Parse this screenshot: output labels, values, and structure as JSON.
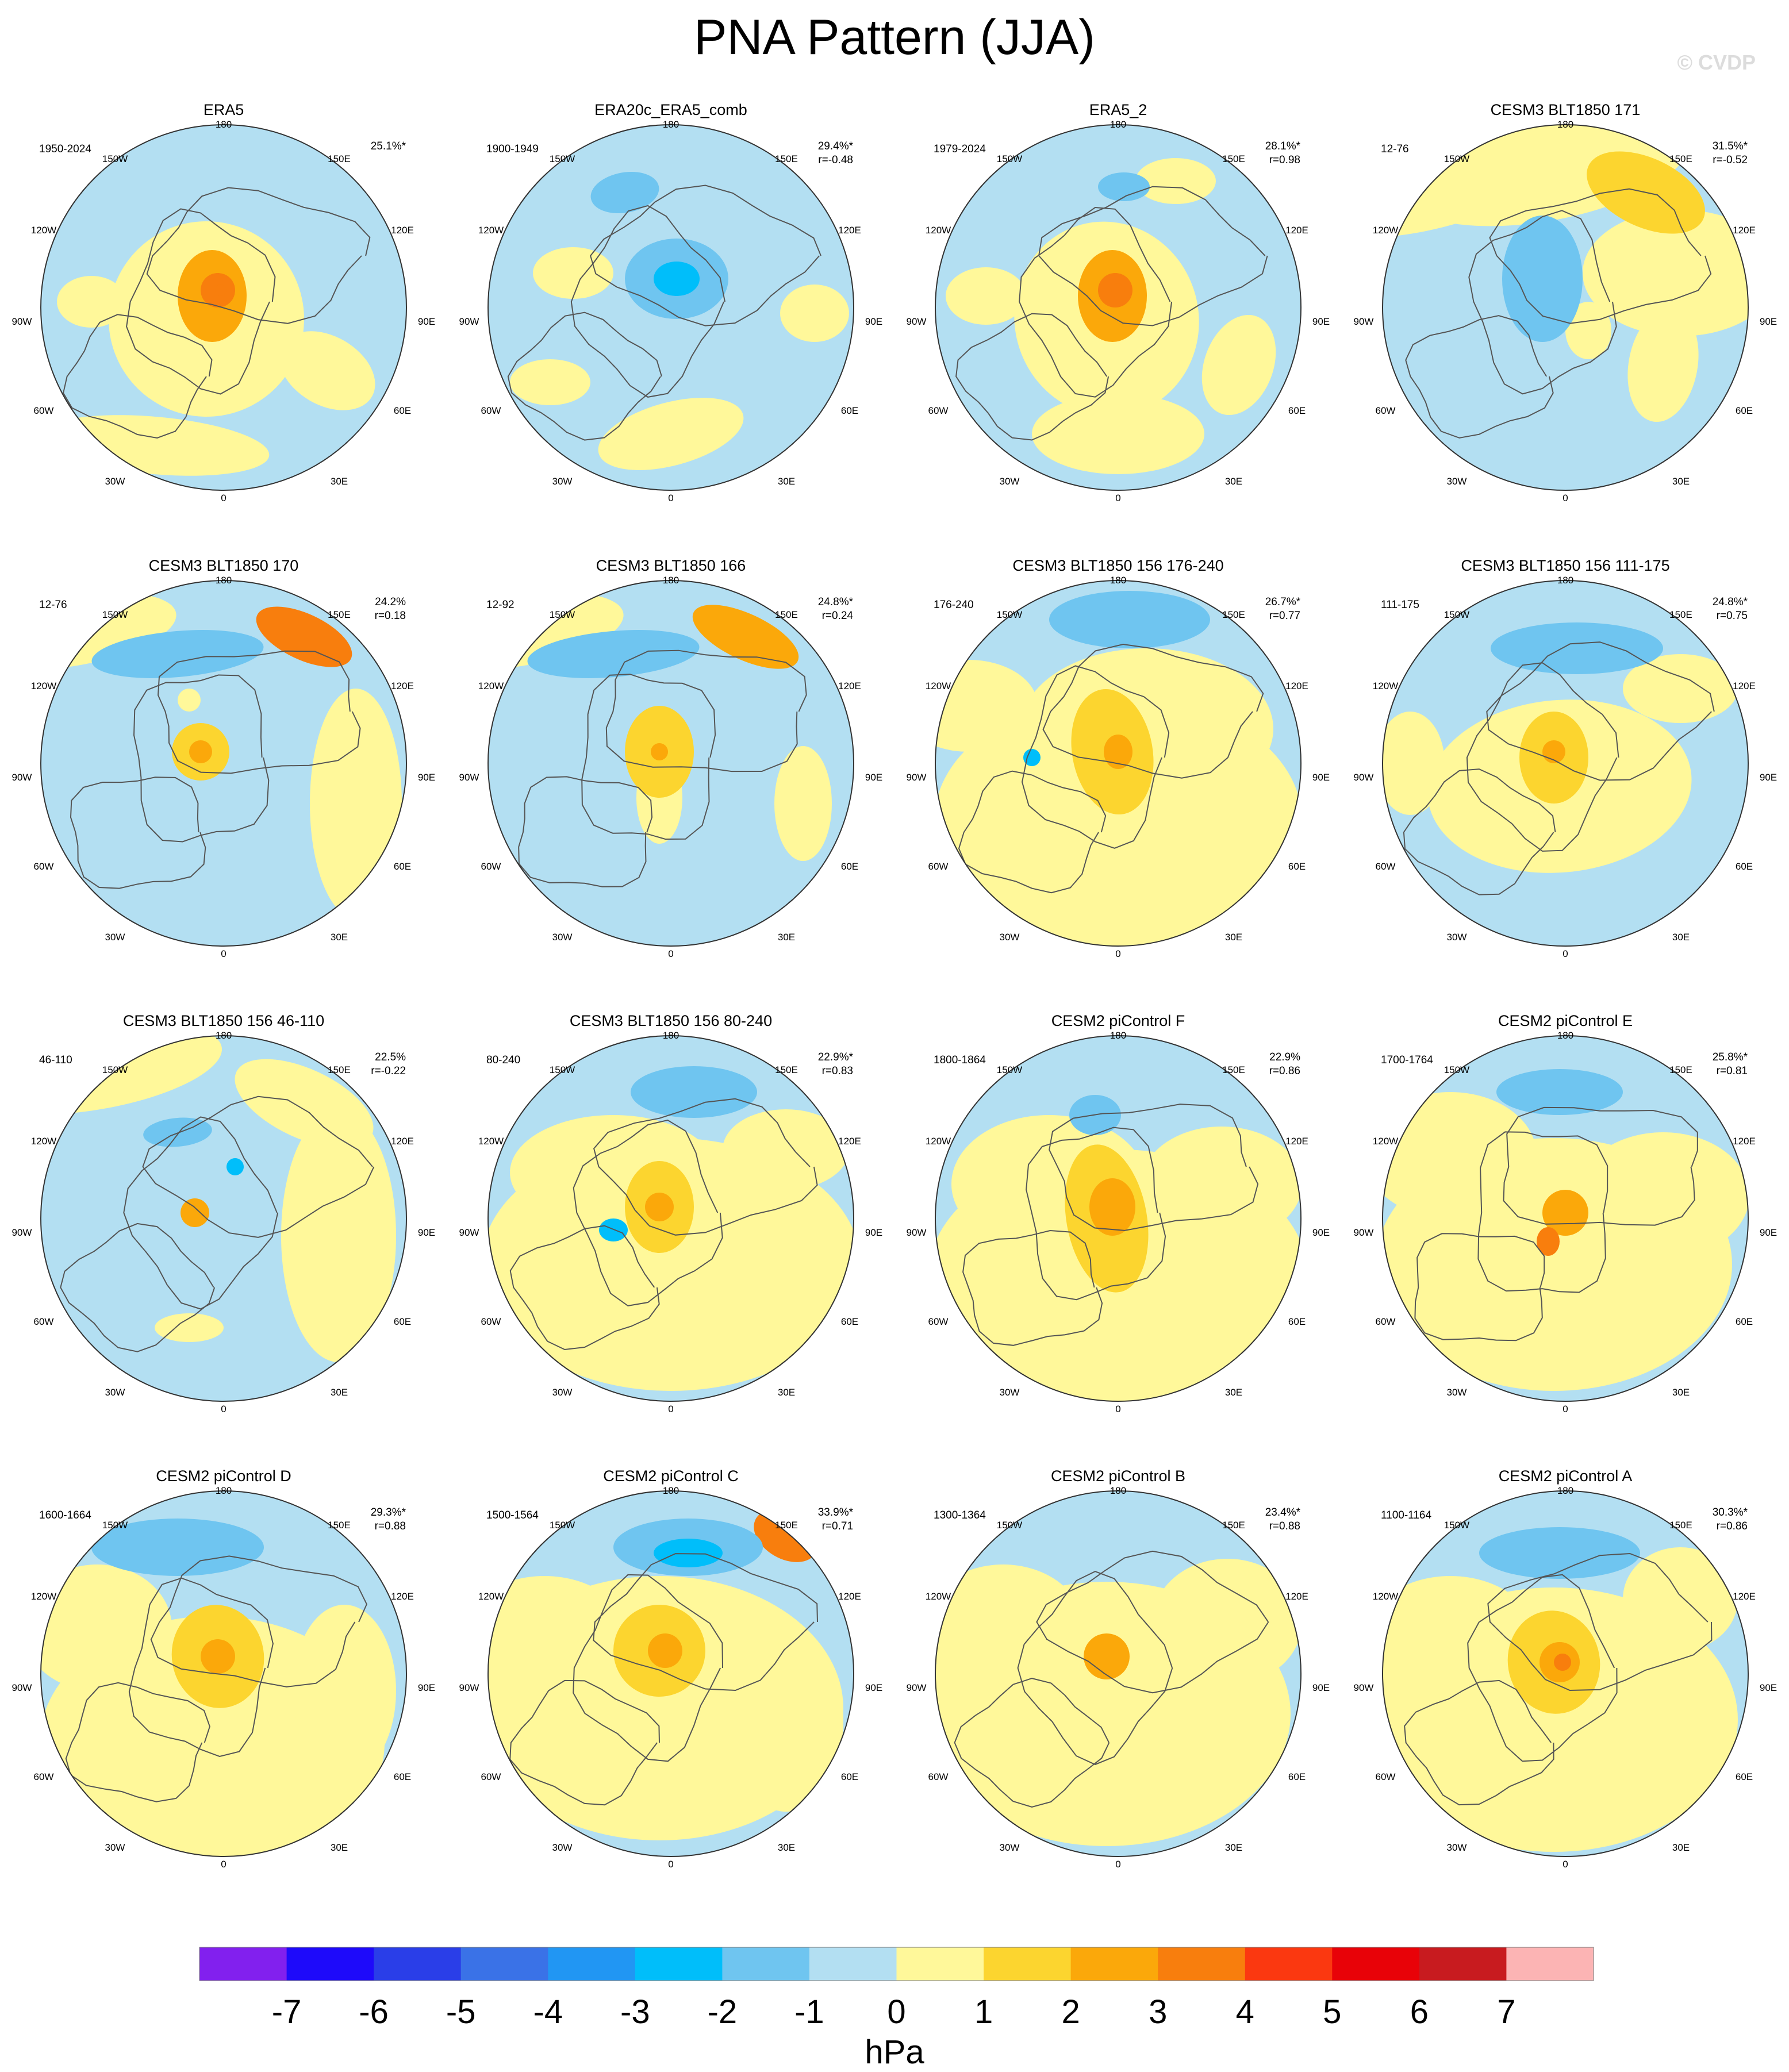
{
  "figure": {
    "title": "PNA Pattern (JJA)",
    "watermark": "© CVDP"
  },
  "map_labels": {
    "lon_top": "180",
    "lon_bottom": "0",
    "w150": "150W",
    "e150": "150E",
    "w120": "120W",
    "e120": "120E",
    "w90": "90W",
    "e90": "90E",
    "w60": "60W",
    "e60": "60E",
    "w30": "30W",
    "e30": "30E"
  },
  "colors": {
    "ocean_neg1_0": "#b3dff2",
    "pos0_1": "#fff89a",
    "pos1_2": "#fcd52f",
    "pos2_3": "#fba80a",
    "pos3_4": "#f87e0d",
    "neg2_1": "#6fc5f0",
    "neg3_2": "#00befa",
    "coast": "#555555"
  },
  "chart_data": {
    "type": "heatmap",
    "projection": "polar stereographic (Northern Hemisphere)",
    "panels": [
      {
        "title": "ERA5",
        "period": "1950-2024",
        "variance": "25.1%*",
        "corr": "",
        "max_level": 4
      },
      {
        "title": "ERA20c_ERA5_comb",
        "period": "1900-1949",
        "variance": "29.4%*",
        "corr": "r=-0.48",
        "max_level": -3
      },
      {
        "title": "ERA5_2",
        "period": "1979-2024",
        "variance": "28.1%*",
        "corr": "r=0.98",
        "max_level": 4
      },
      {
        "title": "CESM3 BLT1850 171",
        "period": "12-76",
        "variance": "31.5%*",
        "corr": "r=-0.52",
        "max_level": 2
      },
      {
        "title": "CESM3 BLT1850 170",
        "period": "12-76",
        "variance": "24.2%",
        "corr": "r=0.18",
        "max_level": 2
      },
      {
        "title": "CESM3 BLT1850 166",
        "period": "12-92",
        "variance": "24.8%*",
        "corr": "r=0.24",
        "max_level": 2
      },
      {
        "title": "CESM3 BLT1850 156 176-240",
        "period": "176-240",
        "variance": "26.7%*",
        "corr": "r=0.77",
        "max_level": 3
      },
      {
        "title": "CESM3 BLT1850 156 111-175",
        "period": "111-175",
        "variance": "24.8%*",
        "corr": "r=0.75",
        "max_level": 3
      },
      {
        "title": "CESM3 BLT1850 156 46-110",
        "period": "46-110",
        "variance": "22.5%",
        "corr": "r=-0.22",
        "max_level": 2
      },
      {
        "title": "CESM3 BLT1850 156 80-240",
        "period": "80-240",
        "variance": "22.9%*",
        "corr": "r=0.83",
        "max_level": 3
      },
      {
        "title": "CESM2 piControl F",
        "period": "1800-1864",
        "variance": "22.9%",
        "corr": "r=0.86",
        "max_level": 3
      },
      {
        "title": "CESM2 piControl E",
        "period": "1700-1764",
        "variance": "25.8%*",
        "corr": "r=0.81",
        "max_level": 3
      },
      {
        "title": "CESM2 piControl D",
        "period": "1600-1664",
        "variance": "29.3%*",
        "corr": "r=0.88",
        "max_level": 3
      },
      {
        "title": "CESM2 piControl C",
        "period": "1500-1564",
        "variance": "33.9%*",
        "corr": "r=0.71",
        "max_level": 3
      },
      {
        "title": "CESM2 piControl B",
        "period": "1300-1364",
        "variance": "23.4%*",
        "corr": "r=0.88",
        "max_level": 3
      },
      {
        "title": "CESM2 piControl A",
        "period": "1100-1164",
        "variance": "30.3%*",
        "corr": "r=0.86",
        "max_level": 4
      }
    ],
    "colorbar": {
      "label": "hPa",
      "ticks": [
        "-7",
        "-6",
        "-5",
        "-4",
        "-3",
        "-2",
        "-1",
        "0",
        "1",
        "2",
        "3",
        "4",
        "5",
        "6",
        "7"
      ],
      "colors": [
        "#8220ee",
        "#1e0afa",
        "#2a3ee8",
        "#3a72e7",
        "#2196f3",
        "#00befa",
        "#6fc5f0",
        "#b3dff2",
        "#fff89a",
        "#fcd52f",
        "#fba80a",
        "#f87e0d",
        "#fb3810",
        "#e80208",
        "#c81b1f",
        "#fcb4b4"
      ]
    }
  }
}
